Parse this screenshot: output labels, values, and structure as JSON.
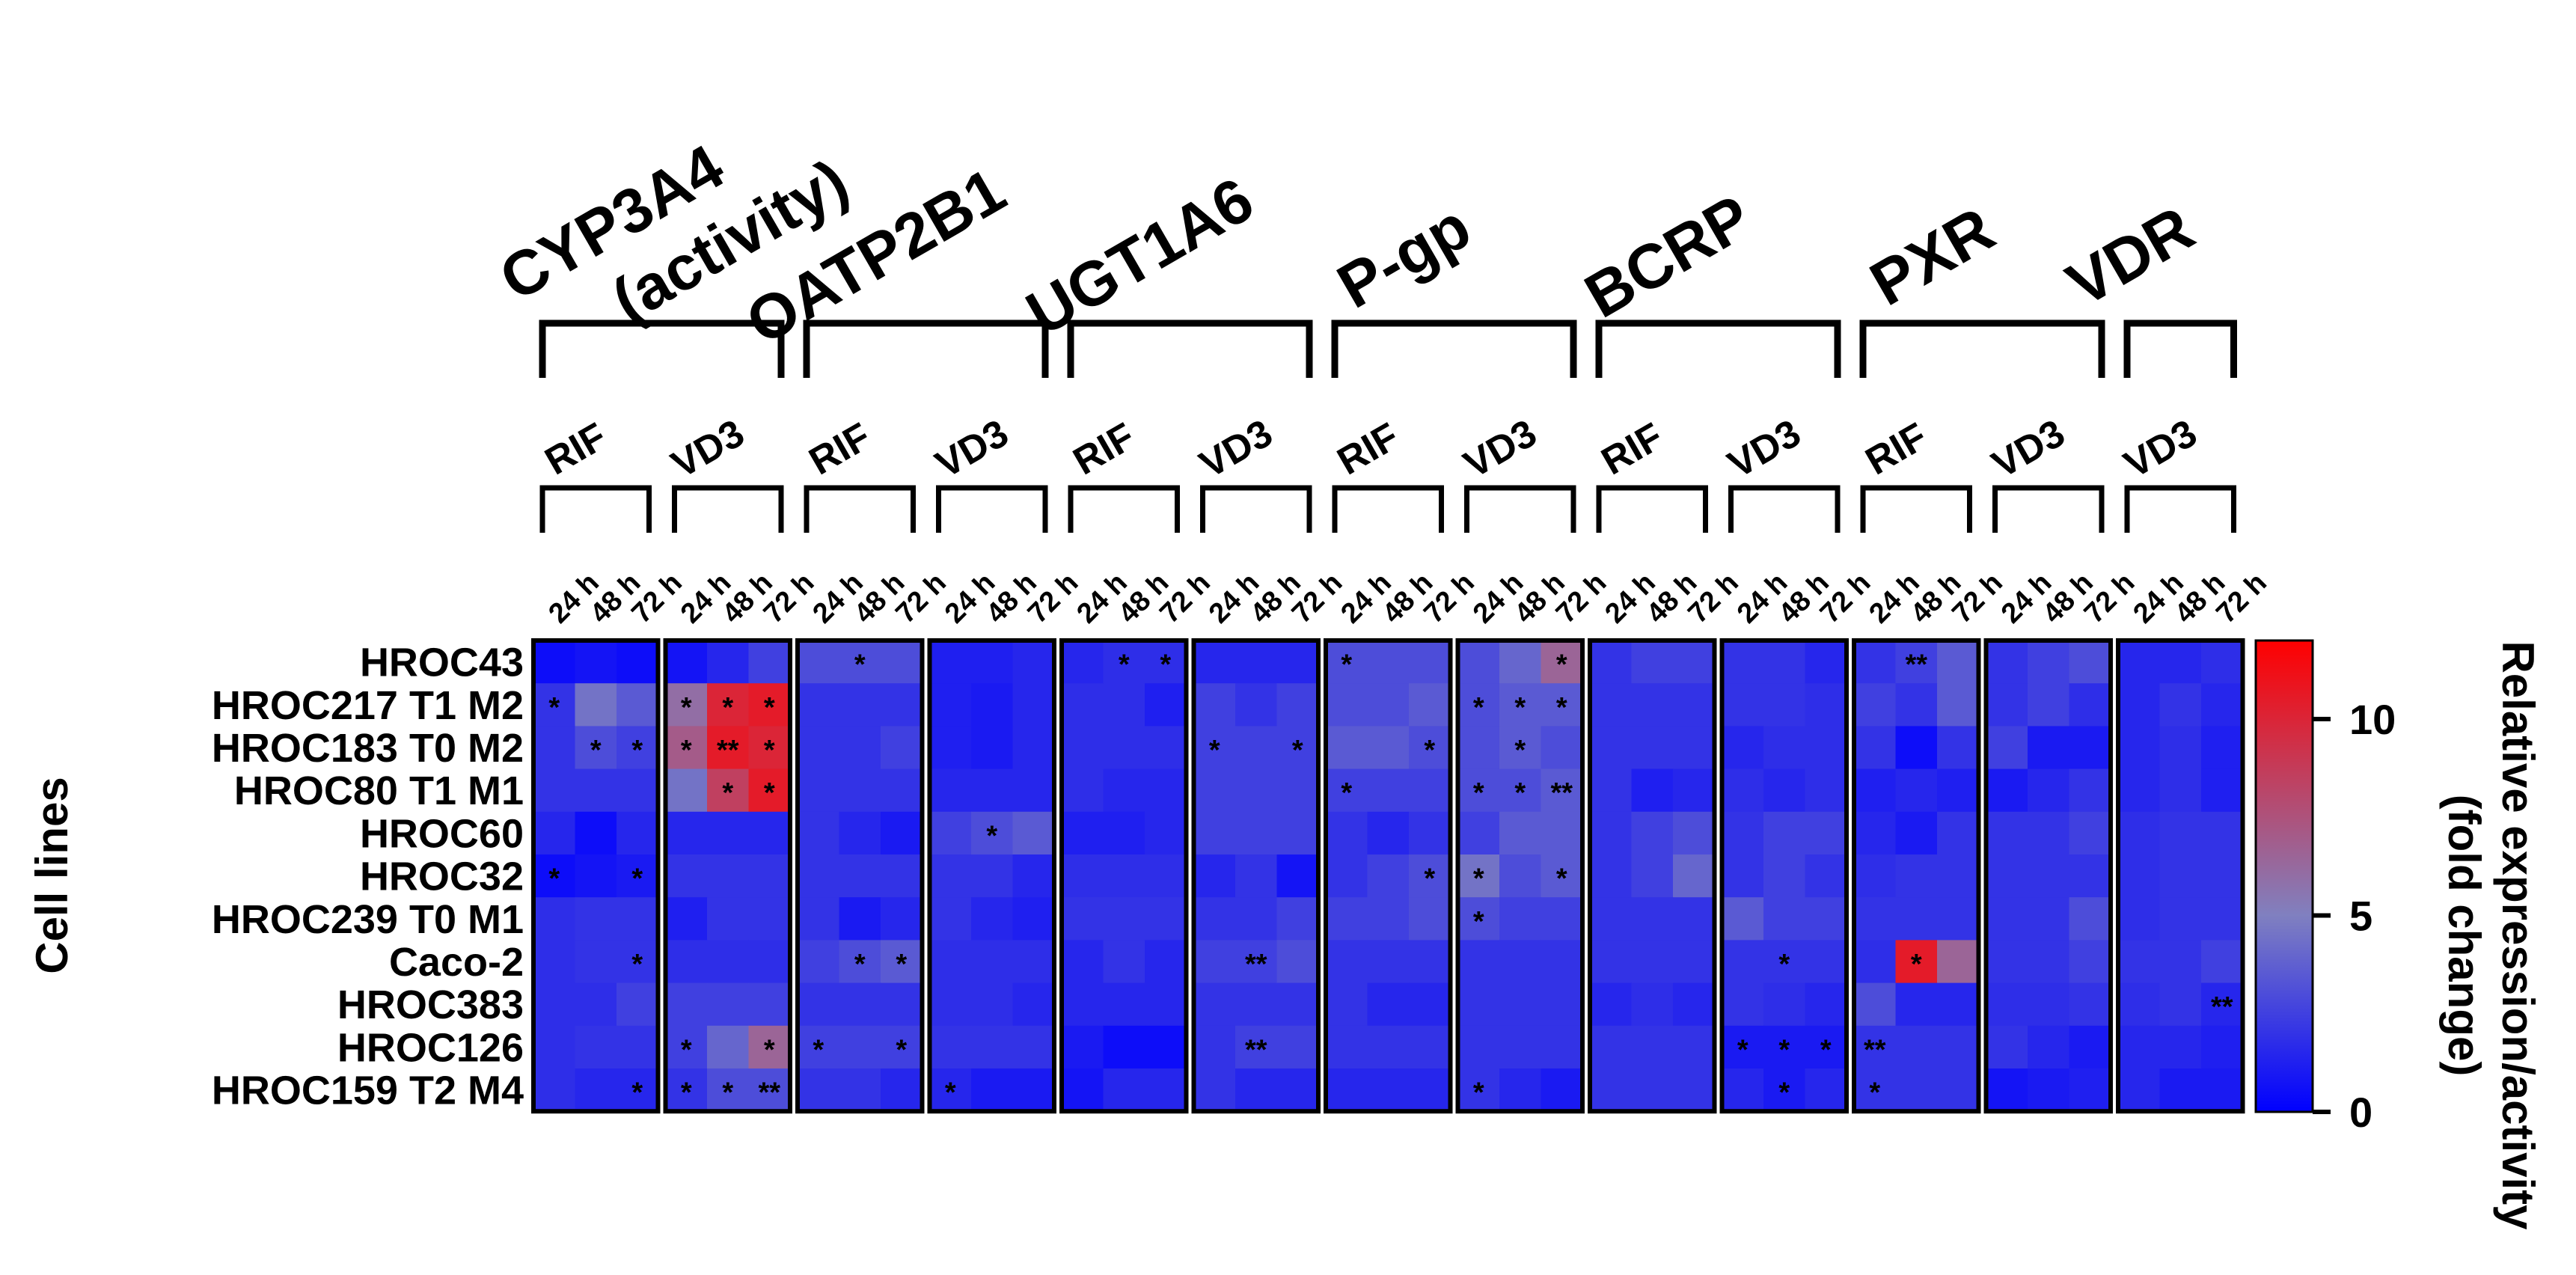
{
  "chart_data": {
    "type": "heatmap",
    "ylabel": "Cell lines",
    "rows": [
      "HROC43",
      "HROC217 T1 M2",
      "HROC183 T0 M2",
      "HROC80 T1 M1",
      "HROC60",
      "HROC32",
      "HROC239 T0 M1",
      "Caco-2",
      "HROC383",
      "HROC126",
      "HROC159 T2 M4"
    ],
    "groups": [
      {
        "gene": "CYP3A4\n(activity)",
        "treatments": [
          "RIF",
          "VD3"
        ]
      },
      {
        "gene": "OATP2B1",
        "treatments": [
          "RIF",
          "VD3"
        ]
      },
      {
        "gene": "UGT1A6",
        "treatments": [
          "RIF",
          "VD3"
        ]
      },
      {
        "gene": "P-gp",
        "treatments": [
          "RIF",
          "VD3"
        ]
      },
      {
        "gene": "BCRP",
        "treatments": [
          "RIF",
          "VD3"
        ]
      },
      {
        "gene": "PXR",
        "treatments": [
          "RIF",
          "VD3"
        ]
      },
      {
        "gene": "VDR",
        "treatments": [
          "VD3"
        ]
      }
    ],
    "timepoints": [
      "24 h",
      "48 h",
      "72 h"
    ],
    "values": [
      [
        0.5,
        0.8,
        0.5,
        0.8,
        1.5,
        2.5,
        3.0,
        3.0,
        3.0,
        1.2,
        1.2,
        1.5,
        1.5,
        1.8,
        1.8,
        1.5,
        1.5,
        1.5,
        3.0,
        3.0,
        3.0,
        3.0,
        4.0,
        6.5,
        2.0,
        2.5,
        2.5,
        2.0,
        2.0,
        1.5,
        2.0,
        2.5,
        3.5,
        2.0,
        2.5,
        3.0,
        1.5,
        1.5,
        1.8
      ],
      [
        2.0,
        4.5,
        3.5,
        6.0,
        10.0,
        10.5,
        2.0,
        2.0,
        2.0,
        1.2,
        1.0,
        1.5,
        1.8,
        1.8,
        1.2,
        2.5,
        2.0,
        2.5,
        3.0,
        3.0,
        3.5,
        3.0,
        3.5,
        3.5,
        2.0,
        2.0,
        2.0,
        2.0,
        2.0,
        1.8,
        2.5,
        2.0,
        3.5,
        2.0,
        2.5,
        1.8,
        1.5,
        2.0,
        1.5
      ],
      [
        2.0,
        3.0,
        2.5,
        7.0,
        10.5,
        10.0,
        2.0,
        2.0,
        2.5,
        1.2,
        1.0,
        1.5,
        1.8,
        1.8,
        1.8,
        2.5,
        2.5,
        2.5,
        3.5,
        3.5,
        3.0,
        3.0,
        3.5,
        3.0,
        2.0,
        2.0,
        2.0,
        1.5,
        1.8,
        1.8,
        2.0,
        0.5,
        2.0,
        2.5,
        1.0,
        1.0,
        1.5,
        1.8,
        1.2
      ],
      [
        2.0,
        2.0,
        2.0,
        4.5,
        8.5,
        10.5,
        2.0,
        2.0,
        2.0,
        1.5,
        1.5,
        1.5,
        1.8,
        1.5,
        1.5,
        2.5,
        2.5,
        2.5,
        2.5,
        2.5,
        2.5,
        3.0,
        3.0,
        3.5,
        2.0,
        1.2,
        1.5,
        1.8,
        1.5,
        1.8,
        1.2,
        1.5,
        1.2,
        1.0,
        1.5,
        2.0,
        1.5,
        1.8,
        1.2
      ],
      [
        1.5,
        0.5,
        1.5,
        1.5,
        1.5,
        1.5,
        2.0,
        1.5,
        1.0,
        2.5,
        3.0,
        3.5,
        1.2,
        1.2,
        1.5,
        2.5,
        2.5,
        2.5,
        2.0,
        1.5,
        2.0,
        2.5,
        3.5,
        3.5,
        2.0,
        2.5,
        3.0,
        2.0,
        2.5,
        2.5,
        1.5,
        1.0,
        2.0,
        2.0,
        2.0,
        2.5,
        1.8,
        2.0,
        2.0
      ],
      [
        0.5,
        0.8,
        1.0,
        2.0,
        2.0,
        2.0,
        2.0,
        2.0,
        2.0,
        2.0,
        2.0,
        1.5,
        1.8,
        1.8,
        1.8,
        1.5,
        2.0,
        0.8,
        2.0,
        2.5,
        3.0,
        4.5,
        3.0,
        3.5,
        2.0,
        2.5,
        4.0,
        2.0,
        2.5,
        2.0,
        1.8,
        2.0,
        2.0,
        2.0,
        2.0,
        2.0,
        1.8,
        2.0,
        2.0
      ],
      [
        1.8,
        2.0,
        2.0,
        1.2,
        2.0,
        2.0,
        2.0,
        1.0,
        1.5,
        2.0,
        1.5,
        1.2,
        2.0,
        2.0,
        2.0,
        2.0,
        2.0,
        2.5,
        2.5,
        2.5,
        3.0,
        3.0,
        2.5,
        2.5,
        2.0,
        2.0,
        2.0,
        3.5,
        2.5,
        2.5,
        2.0,
        2.0,
        2.0,
        2.0,
        2.0,
        3.0,
        1.8,
        2.0,
        2.0
      ],
      [
        1.8,
        2.0,
        2.0,
        1.8,
        1.8,
        1.8,
        2.5,
        3.0,
        3.5,
        1.8,
        1.8,
        1.8,
        1.5,
        2.0,
        1.5,
        2.5,
        2.5,
        3.0,
        2.0,
        2.0,
        2.0,
        2.0,
        2.0,
        2.0,
        2.0,
        2.0,
        2.0,
        2.0,
        2.0,
        2.0,
        1.8,
        10.5,
        6.5,
        2.0,
        2.0,
        2.5,
        2.0,
        2.0,
        2.5
      ],
      [
        1.8,
        1.8,
        2.5,
        2.5,
        2.5,
        2.5,
        2.0,
        2.0,
        2.0,
        1.8,
        1.8,
        1.5,
        1.5,
        1.5,
        1.5,
        2.0,
        2.0,
        2.0,
        2.0,
        1.5,
        1.5,
        2.0,
        2.0,
        2.0,
        1.5,
        1.8,
        1.5,
        2.0,
        1.8,
        1.5,
        3.0,
        1.5,
        1.5,
        1.8,
        1.8,
        2.0,
        1.8,
        2.0,
        1.5
      ],
      [
        1.8,
        2.0,
        2.0,
        2.5,
        4.0,
        6.5,
        2.5,
        2.5,
        2.5,
        2.0,
        2.0,
        2.0,
        1.0,
        0.5,
        0.5,
        2.0,
        2.5,
        2.5,
        2.0,
        2.0,
        2.0,
        2.0,
        2.0,
        2.0,
        2.0,
        2.0,
        2.0,
        1.0,
        1.0,
        1.0,
        2.0,
        2.0,
        2.0,
        2.0,
        1.5,
        1.0,
        1.5,
        1.5,
        1.2
      ],
      [
        1.8,
        1.5,
        1.5,
        2.0,
        3.0,
        3.0,
        2.0,
        2.0,
        1.5,
        1.5,
        1.0,
        1.0,
        0.8,
        1.5,
        1.5,
        2.0,
        1.5,
        1.5,
        1.5,
        1.5,
        1.5,
        2.0,
        1.5,
        1.0,
        2.0,
        2.0,
        2.0,
        1.5,
        1.0,
        1.5,
        2.0,
        2.0,
        2.0,
        0.8,
        1.0,
        1.2,
        1.5,
        1.0,
        1.0
      ]
    ],
    "significance": [
      [
        "",
        "",
        "",
        "",
        "",
        "",
        "",
        "*",
        "",
        "",
        "",
        "",
        "",
        "*",
        "*",
        "",
        "",
        "",
        "*",
        "",
        "",
        "",
        "",
        "*",
        "",
        "",
        "",
        "",
        "",
        "",
        "",
        "**",
        "",
        "",
        "",
        "",
        "",
        "",
        ""
      ],
      [
        "*",
        "",
        "",
        "*",
        "*",
        "*",
        "",
        "",
        "",
        "",
        "",
        "",
        "",
        "",
        "",
        "",
        "",
        "",
        "",
        "",
        "",
        "*",
        "*",
        "*",
        "",
        "",
        "",
        "",
        "",
        "",
        "",
        "",
        "",
        "",
        "",
        "",
        "",
        "",
        ""
      ],
      [
        "",
        "*",
        "*",
        "*",
        "**",
        "*",
        "",
        "",
        "",
        "",
        "",
        "",
        "",
        "",
        "",
        "*",
        "",
        "*",
        "",
        "",
        "*",
        "",
        "*",
        "",
        "",
        "",
        "",
        "",
        "",
        "",
        "",
        "",
        "",
        "",
        "",
        "",
        "",
        "",
        ""
      ],
      [
        "",
        "",
        "",
        "",
        "*",
        "*",
        "",
        "",
        "",
        "",
        "",
        "",
        "",
        "",
        "",
        "",
        "",
        "",
        "*",
        "",
        "",
        "*",
        "*",
        "**",
        "",
        "",
        "",
        "",
        "",
        "",
        "",
        "",
        "",
        "",
        "",
        "",
        "",
        "",
        ""
      ],
      [
        "",
        "",
        "",
        "",
        "",
        "",
        "",
        "",
        "",
        "",
        "*",
        "",
        "",
        "",
        "",
        "",
        "",
        "",
        "",
        "",
        "",
        "",
        "",
        "",
        "",
        "",
        "",
        "",
        "",
        "",
        "",
        "",
        "",
        "",
        "",
        "",
        "",
        "",
        ""
      ],
      [
        "*",
        "",
        "*",
        "",
        "",
        "",
        "",
        "",
        "",
        "",
        "",
        "",
        "",
        "",
        "",
        "",
        "",
        "",
        "",
        "",
        "*",
        "*",
        "",
        "*",
        "",
        "",
        "",
        "",
        "",
        "",
        "",
        "",
        "",
        "",
        "",
        "",
        "",
        "",
        ""
      ],
      [
        "",
        "",
        "",
        "",
        "",
        "",
        "",
        "",
        "",
        "",
        "",
        "",
        "",
        "",
        "",
        "",
        "",
        "",
        "",
        "",
        "",
        "*",
        "",
        "",
        "",
        "",
        "",
        "",
        "",
        "",
        "",
        "",
        "",
        "",
        "",
        "",
        "",
        "",
        ""
      ],
      [
        "",
        "",
        "*",
        "",
        "",
        "",
        "",
        "*",
        "*",
        "",
        "",
        "",
        "",
        "",
        "",
        "",
        "**",
        "",
        "",
        "",
        "",
        "",
        "",
        "",
        "",
        "",
        "",
        "",
        "*",
        "",
        "",
        "*",
        "",
        "",
        "",
        "",
        "",
        "",
        ""
      ],
      [
        "",
        "",
        "",
        "",
        "",
        "",
        "",
        "",
        "",
        "",
        "",
        "",
        "",
        "",
        "",
        "",
        "",
        "",
        "",
        "",
        "",
        "",
        "",
        "",
        "",
        "",
        "",
        "",
        "",
        "",
        "",
        "",
        "",
        "",
        "",
        "",
        "",
        "",
        "**"
      ],
      [
        "",
        "",
        "",
        "*",
        "",
        "*",
        "*",
        "",
        "*",
        "",
        "",
        "",
        "",
        "",
        "",
        "",
        "**",
        "",
        "",
        "",
        "",
        "",
        "",
        "",
        "",
        "",
        "",
        "*",
        "*",
        "*",
        "**",
        "",
        "",
        "",
        "",
        "",
        "",
        "",
        ""
      ],
      [
        "",
        "",
        "*",
        "*",
        "*",
        "**",
        "",
        "",
        "",
        "*",
        "",
        "",
        "",
        "",
        "",
        "",
        "",
        "",
        "",
        "",
        "",
        "*",
        "",
        "",
        "",
        "",
        "",
        "",
        "*",
        "",
        "*",
        "",
        "",
        "",
        "",
        "",
        "",
        "",
        ""
      ]
    ],
    "colorbar": {
      "min": 0,
      "max": 12,
      "ticks": [
        0,
        5,
        10
      ],
      "colors": {
        "low": "#0000ff",
        "mid": "#8080c0",
        "high": "#ff0000"
      },
      "label": "Relative expression/activity\n(fold change)"
    }
  }
}
